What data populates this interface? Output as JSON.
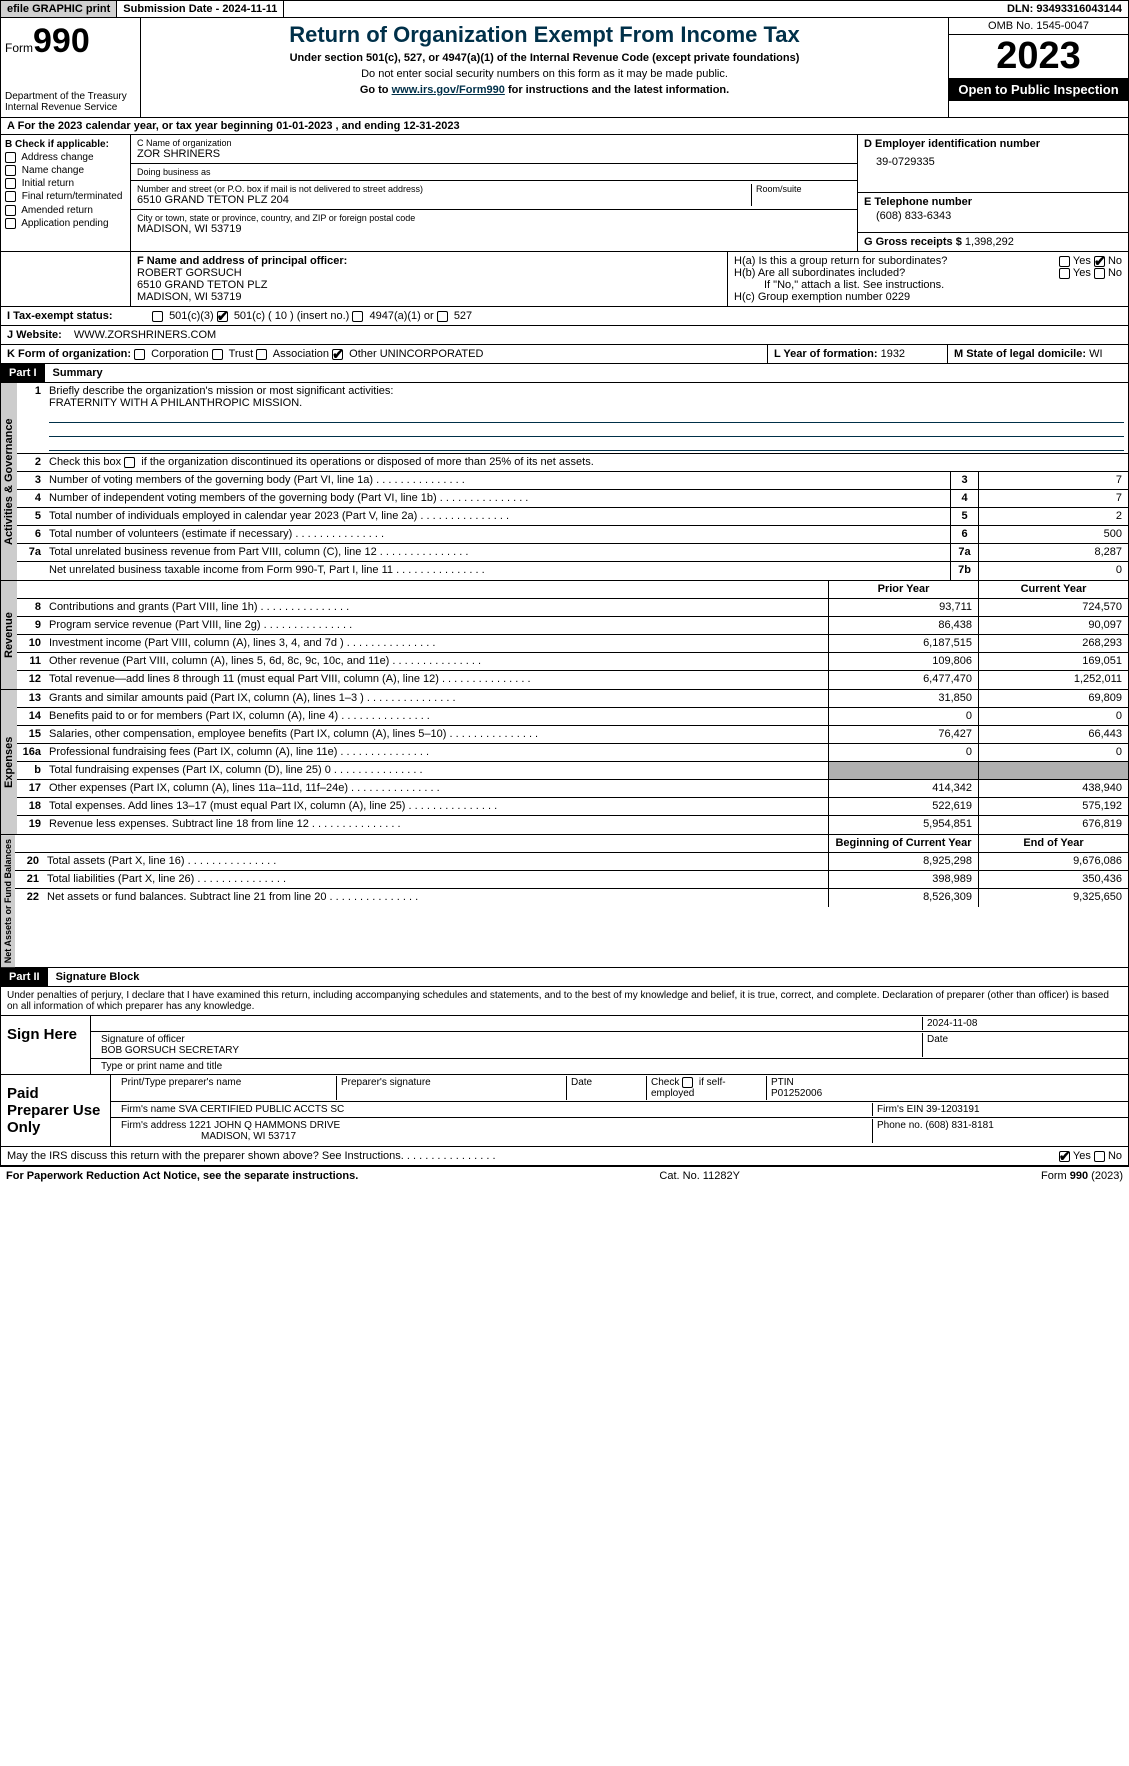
{
  "topbar": {
    "efile": "efile GRAPHIC print",
    "submission": "Submission Date - 2024-11-11",
    "dln": "DLN: 93493316043144"
  },
  "header": {
    "form_label": "Form",
    "form_number": "990",
    "dept": "Department of the Treasury\nInternal Revenue Service",
    "title": "Return of Organization Exempt From Income Tax",
    "subtitle": "Under section 501(c), 527, or 4947(a)(1) of the Internal Revenue Code (except private foundations)",
    "ssn_warning": "Do not enter social security numbers on this form as it may be made public.",
    "goto_prefix": "Go to ",
    "goto_link": "www.irs.gov/Form990",
    "goto_suffix": " for instructions and the latest information.",
    "omb": "OMB No. 1545-0047",
    "year": "2023",
    "inspection": "Open to Public Inspection"
  },
  "row_a": "For the 2023 calendar year, or tax year beginning 01-01-2023   , and ending 12-31-2023",
  "box_b": {
    "header": "B Check if applicable:",
    "items": [
      "Address change",
      "Name change",
      "Initial return",
      "Final return/terminated",
      "Amended return",
      "Application pending"
    ]
  },
  "box_c": {
    "name_label": "C Name of organization",
    "name": "ZOR SHRINERS",
    "dba_label": "Doing business as",
    "dba": "",
    "addr_label": "Number and street (or P.O. box if mail is not delivered to street address)",
    "addr": "6510 GRAND TETON PLZ 204",
    "room_label": "Room/suite",
    "city_label": "City or town, state or province, country, and ZIP or foreign postal code",
    "city": "MADISON, WI  53719"
  },
  "box_d": {
    "label": "D Employer identification number",
    "value": "39-0729335"
  },
  "box_e": {
    "label": "E Telephone number",
    "value": "(608) 833-6343"
  },
  "box_g": {
    "label": "G Gross receipts $",
    "value": "1,398,292"
  },
  "box_f": {
    "label": "F  Name and address of principal officer:",
    "name": "ROBERT GORSUCH",
    "addr1": "6510 GRAND TETON PLZ",
    "addr2": "MADISON, WI  53719"
  },
  "box_h": {
    "a_label": "H(a)  Is this a group return for subordinates?",
    "b_label": "H(b)  Are all subordinates included?",
    "attach": "If \"No,\" attach a list. See instructions.",
    "c_label": "H(c)  Group exemption number  ",
    "c_value": "0229"
  },
  "tax_status": {
    "label": "I    Tax-exempt status:",
    "opts": [
      "501(c)(3)",
      "501(c) ( 10 ) (insert no.)",
      "4947(a)(1) or",
      "527"
    ]
  },
  "website": {
    "label": "J   Website: ",
    "value": "WWW.ZORSHRINERS.COM"
  },
  "box_k": {
    "label": "K Form of organization:",
    "opts": [
      "Corporation",
      "Trust",
      "Association",
      "Other"
    ],
    "other_val": "UNINCORPORATED"
  },
  "box_l": {
    "label": "L Year of formation:",
    "value": "1932"
  },
  "box_m": {
    "label": "M State of legal domicile:",
    "value": "WI"
  },
  "part1": {
    "header": "Part I",
    "title": "Summary"
  },
  "mission": {
    "label": "Briefly describe the organization's mission or most significant activities:",
    "text": "FRATERNITY WITH A PHILANTHROPIC MISSION."
  },
  "line2": "Check this box      if the organization discontinued its operations or disposed of more than 25% of its net assets.",
  "governance": [
    {
      "n": "3",
      "d": "Number of voting members of the governing body (Part VI, line 1a)",
      "b": "3",
      "v": "7"
    },
    {
      "n": "4",
      "d": "Number of independent voting members of the governing body (Part VI, line 1b)",
      "b": "4",
      "v": "7"
    },
    {
      "n": "5",
      "d": "Total number of individuals employed in calendar year 2023 (Part V, line 2a)",
      "b": "5",
      "v": "2"
    },
    {
      "n": "6",
      "d": "Total number of volunteers (estimate if necessary)",
      "b": "6",
      "v": "500"
    },
    {
      "n": "7a",
      "d": "Total unrelated business revenue from Part VIII, column (C), line 12",
      "b": "7a",
      "v": "8,287"
    },
    {
      "n": "",
      "d": "Net unrelated business taxable income from Form 990-T, Part I, line 11",
      "b": "7b",
      "v": "0"
    }
  ],
  "col_headers": {
    "prior": "Prior Year",
    "current": "Current Year"
  },
  "revenue": [
    {
      "n": "8",
      "d": "Contributions and grants (Part VIII, line 1h)",
      "p": "93,711",
      "c": "724,570"
    },
    {
      "n": "9",
      "d": "Program service revenue (Part VIII, line 2g)",
      "p": "86,438",
      "c": "90,097"
    },
    {
      "n": "10",
      "d": "Investment income (Part VIII, column (A), lines 3, 4, and 7d )",
      "p": "6,187,515",
      "c": "268,293"
    },
    {
      "n": "11",
      "d": "Other revenue (Part VIII, column (A), lines 5, 6d, 8c, 9c, 10c, and 11e)",
      "p": "109,806",
      "c": "169,051"
    },
    {
      "n": "12",
      "d": "Total revenue—add lines 8 through 11 (must equal Part VIII, column (A), line 12)",
      "p": "6,477,470",
      "c": "1,252,011"
    }
  ],
  "expenses": [
    {
      "n": "13",
      "d": "Grants and similar amounts paid (Part IX, column (A), lines 1–3 )",
      "p": "31,850",
      "c": "69,809"
    },
    {
      "n": "14",
      "d": "Benefits paid to or for members (Part IX, column (A), line 4)",
      "p": "0",
      "c": "0"
    },
    {
      "n": "15",
      "d": "Salaries, other compensation, employee benefits (Part IX, column (A), lines 5–10)",
      "p": "76,427",
      "c": "66,443"
    },
    {
      "n": "16a",
      "d": "Professional fundraising fees (Part IX, column (A), line 11e)",
      "p": "0",
      "c": "0"
    },
    {
      "n": "b",
      "d": "Total fundraising expenses (Part IX, column (D), line 25) 0",
      "p": "",
      "c": "",
      "shaded": true
    },
    {
      "n": "17",
      "d": "Other expenses (Part IX, column (A), lines 11a–11d, 11f–24e)",
      "p": "414,342",
      "c": "438,940"
    },
    {
      "n": "18",
      "d": "Total expenses. Add lines 13–17 (must equal Part IX, column (A), line 25)",
      "p": "522,619",
      "c": "575,192"
    },
    {
      "n": "19",
      "d": "Revenue less expenses. Subtract line 18 from line 12",
      "p": "5,954,851",
      "c": "676,819"
    }
  ],
  "col_headers2": {
    "prior": "Beginning of Current Year",
    "current": "End of Year"
  },
  "netassets": [
    {
      "n": "20",
      "d": "Total assets (Part X, line 16)",
      "p": "8,925,298",
      "c": "9,676,086"
    },
    {
      "n": "21",
      "d": "Total liabilities (Part X, line 26)",
      "p": "398,989",
      "c": "350,436"
    },
    {
      "n": "22",
      "d": "Net assets or fund balances. Subtract line 21 from line 20",
      "p": "8,526,309",
      "c": "9,325,650"
    }
  ],
  "part2": {
    "header": "Part II",
    "title": "Signature Block"
  },
  "penalties": "Under penalties of perjury, I declare that I have examined this return, including accompanying schedules and statements, and to the best of my knowledge and belief, it is true, correct, and complete. Declaration of preparer (other than officer) is based on all information of which preparer has any knowledge.",
  "sign": {
    "label": "Sign Here",
    "date": "2024-11-08",
    "sig_label": "Signature of officer",
    "officer": "BOB GORSUCH  SECRETARY",
    "name_label": "Type or print name and title",
    "date_label": "Date"
  },
  "preparer": {
    "label": "Paid Preparer Use Only",
    "name_label": "Print/Type preparer's name",
    "sig_label": "Preparer's signature",
    "date_label": "Date",
    "self_label": "Check        if self-employed",
    "ptin_label": "PTIN",
    "ptin": "P01252006",
    "firm_name_label": "Firm's name    ",
    "firm_name": "SVA CERTIFIED PUBLIC ACCTS SC",
    "firm_ein_label": "Firm's EIN  ",
    "firm_ein": "39-1203191",
    "firm_addr_label": "Firm's address ",
    "firm_addr": "1221 JOHN Q HAMMONS DRIVE",
    "firm_city": "MADISON, WI  53717",
    "phone_label": "Phone no.",
    "phone": "(608) 831-8181"
  },
  "discuss": "May the IRS discuss this return with the preparer shown above? See Instructions.",
  "footer": {
    "left": "For Paperwork Reduction Act Notice, see the separate instructions.",
    "mid": "Cat. No. 11282Y",
    "right": "Form 990 (2023)"
  },
  "side_labels": {
    "gov": "Activities & Governance",
    "rev": "Revenue",
    "exp": "Expenses",
    "net": "Net Assets or Fund Balances"
  },
  "yes": "Yes",
  "no": "No"
}
